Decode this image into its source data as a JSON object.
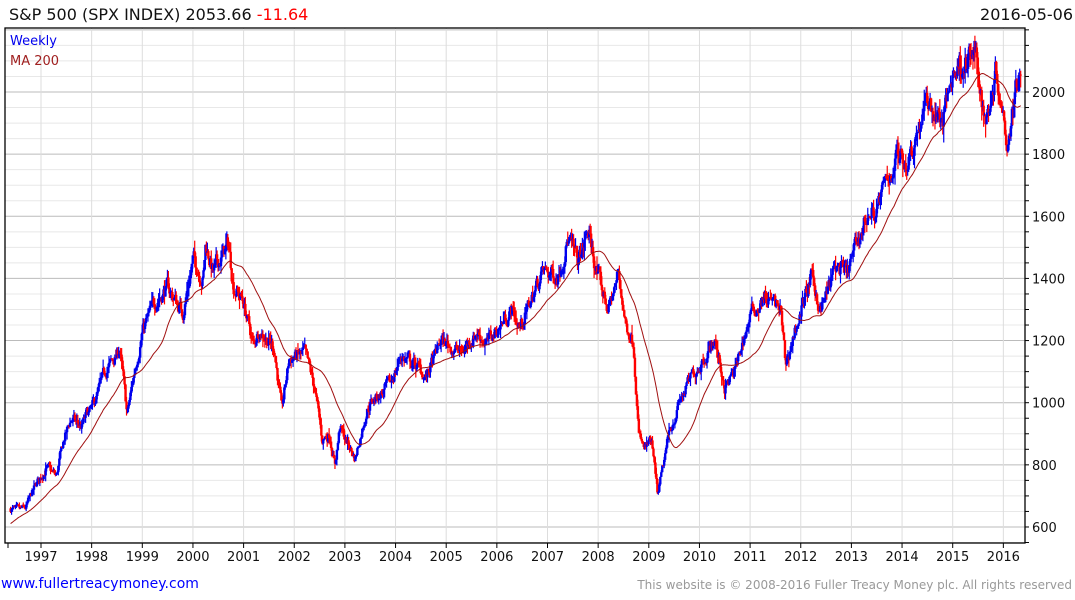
{
  "header": {
    "title": "S&P 500 (SPX INDEX) 2053.66",
    "change": "-11.64",
    "date": "2016-05-06"
  },
  "footer": {
    "site": "www.fullertreacymoney.com",
    "copyright": "This website is © 2008-2016 Fuller Treacy Money plc. All rights reserved"
  },
  "colors": {
    "up": "#0000ee",
    "down": "#ff0000",
    "ma": "#a01010",
    "grid": "#dddddd",
    "major_grid": "#bbbbbb"
  },
  "chart_data": {
    "type": "ohlc",
    "title": "S&P 500 (SPX INDEX)",
    "legend": [
      "Weekly",
      "MA 200"
    ],
    "legend_placement": "top-left",
    "xlim": [
      1996.35,
      2016.4
    ],
    "ylim": [
      560,
      2200
    ],
    "x_ticks": [
      "1997",
      "1998",
      "1999",
      "2000",
      "2001",
      "2002",
      "2003",
      "2004",
      "2005",
      "2006",
      "2007",
      "2008",
      "2009",
      "2010",
      "2011",
      "2012",
      "2013",
      "2014",
      "2015",
      "2016"
    ],
    "y_ticks": [
      600,
      800,
      1000,
      1200,
      1400,
      1600,
      1800,
      2000
    ],
    "keypoints": [
      [
        1996.4,
        660
      ],
      [
        1996.55,
        650
      ],
      [
        1996.7,
        660
      ],
      [
        1996.8,
        700
      ],
      [
        1996.95,
        750
      ],
      [
        1997.1,
        790
      ],
      [
        1997.25,
        770
      ],
      [
        1997.3,
        760
      ],
      [
        1997.45,
        880
      ],
      [
        1997.6,
        950
      ],
      [
        1997.8,
        920
      ],
      [
        1997.9,
        960
      ],
      [
        1998.0,
        975
      ],
      [
        1998.3,
        1110
      ],
      [
        1998.5,
        1150
      ],
      [
        1998.55,
        1180
      ],
      [
        1998.7,
        960
      ],
      [
        1998.9,
        1150
      ],
      [
        1999.0,
        1230
      ],
      [
        1999.3,
        1340
      ],
      [
        1999.5,
        1370
      ],
      [
        1999.8,
        1290
      ],
      [
        2000.0,
        1460
      ],
      [
        2000.2,
        1400
      ],
      [
        2000.25,
        1510
      ],
      [
        2000.4,
        1420
      ],
      [
        2000.7,
        1510
      ],
      [
        2000.8,
        1380
      ],
      [
        2001.0,
        1320
      ],
      [
        2001.2,
        1180
      ],
      [
        2001.3,
        1240
      ],
      [
        2001.6,
        1180
      ],
      [
        2001.7,
        1050
      ],
      [
        2001.75,
        970
      ],
      [
        2001.9,
        1140
      ],
      [
        2002.2,
        1160
      ],
      [
        2002.4,
        1050
      ],
      [
        2002.55,
        880
      ],
      [
        2002.7,
        900
      ],
      [
        2002.8,
        800
      ],
      [
        2002.9,
        920
      ],
      [
        2003.2,
        820
      ],
      [
        2003.45,
        990
      ],
      [
        2003.9,
        1060
      ],
      [
        2004.1,
        1150
      ],
      [
        2004.4,
        1120
      ],
      [
        2004.6,
        1080
      ],
      [
        2004.9,
        1200
      ],
      [
        2005.3,
        1160
      ],
      [
        2005.6,
        1230
      ],
      [
        2005.8,
        1190
      ],
      [
        2006.3,
        1300
      ],
      [
        2006.45,
        1240
      ],
      [
        2006.9,
        1420
      ],
      [
        2007.2,
        1410
      ],
      [
        2007.4,
        1530
      ],
      [
        2007.6,
        1450
      ],
      [
        2007.8,
        1550
      ],
      [
        2008.0,
        1400
      ],
      [
        2008.2,
        1300
      ],
      [
        2008.4,
        1410
      ],
      [
        2008.55,
        1250
      ],
      [
        2008.7,
        1200
      ],
      [
        2008.8,
        900
      ],
      [
        2008.9,
        850
      ],
      [
        2009.05,
        870
      ],
      [
        2009.18,
        700
      ],
      [
        2009.4,
        900
      ],
      [
        2009.6,
        1000
      ],
      [
        2009.9,
        1100
      ],
      [
        2010.3,
        1200
      ],
      [
        2010.5,
        1050
      ],
      [
        2010.7,
        1100
      ],
      [
        2011.0,
        1280
      ],
      [
        2011.3,
        1340
      ],
      [
        2011.6,
        1300
      ],
      [
        2011.7,
        1120
      ],
      [
        2011.9,
        1240
      ],
      [
        2012.2,
        1400
      ],
      [
        2012.4,
        1300
      ],
      [
        2012.7,
        1440
      ],
      [
        2012.9,
        1410
      ],
      [
        2013.3,
        1600
      ],
      [
        2013.5,
        1620
      ],
      [
        2013.9,
        1800
      ],
      [
        2014.1,
        1780
      ],
      [
        2014.5,
        1970
      ],
      [
        2014.8,
        1900
      ],
      [
        2015.0,
        2060
      ],
      [
        2015.2,
        2100
      ],
      [
        2015.45,
        2110
      ],
      [
        2015.65,
        1900
      ],
      [
        2015.85,
        2080
      ],
      [
        2016.05,
        1880
      ],
      [
        2016.1,
        1860
      ],
      [
        2016.25,
        2050
      ],
      [
        2016.35,
        2053.66
      ]
    ],
    "ma_period_weeks": 40,
    "last_close": 2053.66,
    "last_change": -11.64
  }
}
